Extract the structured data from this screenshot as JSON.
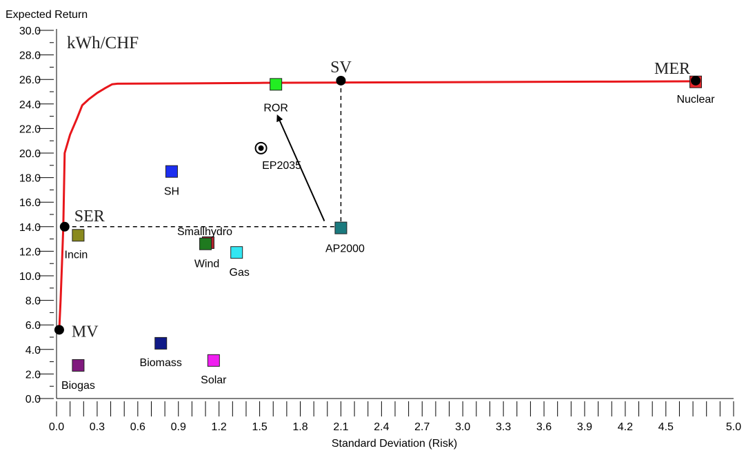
{
  "chart_data": {
    "type": "scatter",
    "ylabel": "Expected Return",
    "xlabel": "Standard Deviation (Risk)",
    "unit": "kWh/CHF",
    "xlim": [
      0,
      5.0
    ],
    "ylim": [
      0,
      30.0
    ],
    "x_ticks": [
      "0.0",
      "0.3",
      "0.6",
      "0.9",
      "1.2",
      "1.5",
      "1.8",
      "2.1",
      "2.4",
      "2.7",
      "3.0",
      "3.3",
      "3.6",
      "3.9",
      "4.2",
      "4.5",
      "5.0"
    ],
    "x_tick_values": [
      0,
      0.3,
      0.6,
      0.9,
      1.2,
      1.5,
      1.8,
      2.1,
      2.4,
      2.7,
      3.0,
      3.3,
      3.6,
      3.9,
      4.2,
      4.5,
      5.0
    ],
    "y_ticks": [
      "0.0",
      "2.0",
      "4.0",
      "6.0",
      "8.0",
      "10.0",
      "12.0",
      "14.0",
      "16.0",
      "18.0",
      "20.0",
      "22.0",
      "24.0",
      "26.0",
      "28.0",
      "30.0"
    ],
    "y_tick_values": [
      0,
      2,
      4,
      6,
      8,
      10,
      12,
      14,
      16,
      18,
      20,
      22,
      24,
      26,
      28,
      30
    ],
    "frontier": {
      "color": "#e8161b",
      "x": [
        0.02,
        0.03,
        0.04,
        0.05,
        0.06,
        0.1,
        0.15,
        0.19,
        0.24,
        0.3,
        0.36,
        0.41,
        0.45,
        1.0,
        1.5,
        2.1,
        3.0,
        4.0,
        4.73
      ],
      "y": [
        5.6,
        8.0,
        11.0,
        14.0,
        20.0,
        21.5,
        22.8,
        23.9,
        24.4,
        24.9,
        25.3,
        25.6,
        25.65,
        25.68,
        25.72,
        25.75,
        25.78,
        25.82,
        25.85
      ]
    },
    "technologies": [
      {
        "name": "Nuclear",
        "x": 4.72,
        "y": 25.8,
        "color": "#e6262a"
      },
      {
        "name": "ROR",
        "x": 1.62,
        "y": 25.6,
        "color": "#22ee22"
      },
      {
        "name": "SH",
        "x": 0.85,
        "y": 18.5,
        "color": "#1c2ef0"
      },
      {
        "name": "Smallhydro",
        "x": 1.12,
        "y": 12.7,
        "color": "#b1232d"
      },
      {
        "name": "Wind",
        "x": 1.1,
        "y": 12.6,
        "color": "#1f7a1f"
      },
      {
        "name": "Gas",
        "x": 1.33,
        "y": 11.9,
        "color": "#33e6f2"
      },
      {
        "name": "Incin",
        "x": 0.16,
        "y": 13.3,
        "color": "#8a8a1e"
      },
      {
        "name": "AP2000",
        "x": 2.1,
        "y": 13.9,
        "color": "#1b7a7e"
      },
      {
        "name": "Biomass",
        "x": 0.77,
        "y": 4.5,
        "color": "#101a87"
      },
      {
        "name": "Solar",
        "x": 1.16,
        "y": 3.1,
        "color": "#f01ef0"
      },
      {
        "name": "Biogas",
        "x": 0.16,
        "y": 2.7,
        "color": "#80197e"
      }
    ],
    "key_points": [
      {
        "name": "MV",
        "x": 0.02,
        "y": 5.6
      },
      {
        "name": "SER",
        "x": 0.06,
        "y": 14.0
      },
      {
        "name": "SV",
        "x": 2.1,
        "y": 25.9
      },
      {
        "name": "MER",
        "x": 4.72,
        "y": 25.9
      }
    ],
    "target": {
      "name": "EP2035",
      "x": 1.51,
      "y": 20.4
    }
  }
}
